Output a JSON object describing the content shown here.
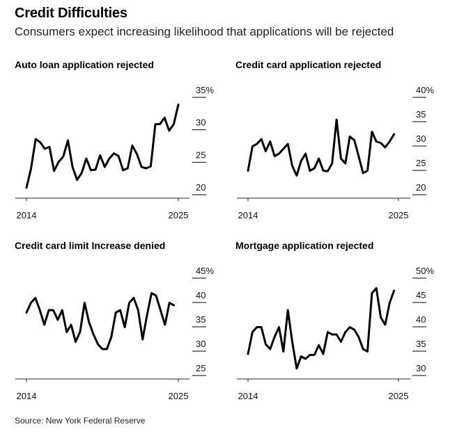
{
  "header": {
    "title": "Credit Difficulties",
    "subtitle": "Consumers expect increasing likelihood that applications will be rejected"
  },
  "source": "Source: New York Federal Reserve",
  "chart_data": [
    {
      "type": "line",
      "title": "Auto loan application rejected",
      "ylim": [
        20,
        35
      ],
      "yticks": [
        20,
        25,
        30,
        35
      ],
      "ytick_labels": [
        "20",
        "25",
        "30",
        "35%"
      ],
      "xtick_labels": [
        "2014",
        "2025"
      ],
      "x": [
        0,
        1,
        2,
        3,
        4,
        5,
        6,
        7,
        8,
        9,
        10,
        11,
        12,
        13,
        14,
        15,
        16,
        17,
        18,
        19,
        20,
        21,
        22,
        23,
        24,
        25,
        26,
        27,
        28,
        29,
        30,
        31,
        32,
        33
      ],
      "values": [
        20.0,
        23.0,
        27.5,
        27.0,
        26.0,
        26.3,
        22.6,
        24.0,
        24.8,
        27.3,
        23.2,
        21.2,
        22.3,
        24.5,
        22.7,
        22.8,
        25.0,
        23.2,
        24.5,
        25.3,
        24.9,
        22.7,
        23.0,
        26.5,
        25.2,
        23.2,
        23.0,
        23.3,
        29.8,
        29.8,
        30.8,
        28.8,
        29.8,
        32.8
      ]
    },
    {
      "type": "line",
      "title": "Credit card application rejected",
      "ylim": [
        20,
        40
      ],
      "yticks": [
        20,
        25,
        30,
        35,
        40
      ],
      "ytick_labels": [
        "20",
        "25",
        "30",
        "35",
        "40%"
      ],
      "xtick_labels": [
        "2014",
        "2025"
      ],
      "x": [
        0,
        1,
        2,
        3,
        4,
        5,
        6,
        7,
        8,
        9,
        10,
        11,
        12,
        13,
        14,
        15,
        16,
        17,
        18,
        19,
        20,
        21,
        22,
        23,
        24,
        25,
        26,
        27,
        28,
        29,
        30,
        31,
        32,
        33,
        34
      ],
      "values": [
        23.5,
        28.5,
        29.0,
        30.0,
        27.5,
        29.5,
        26.5,
        27.0,
        28.0,
        29.0,
        24.5,
        22.5,
        25.5,
        27.0,
        23.5,
        24.0,
        26.0,
        23.5,
        23.4,
        25.0,
        34.0,
        26.0,
        25.0,
        30.5,
        29.8,
        26.5,
        23.0,
        23.5,
        31.5,
        29.5,
        29.2,
        28.3,
        29.5,
        31.0,
        null
      ]
    },
    {
      "type": "line",
      "title": "Credit card limit Increase denied",
      "ylim": [
        25,
        45
      ],
      "yticks": [
        25,
        30,
        35,
        40,
        45
      ],
      "ytick_labels": [
        "25",
        "30",
        "35",
        "40",
        "45%"
      ],
      "xtick_labels": [
        "2014",
        "2025"
      ],
      "x": [
        0,
        1,
        2,
        3,
        4,
        5,
        6,
        7,
        8,
        9,
        10,
        11,
        12,
        13,
        14,
        15,
        16,
        17,
        18,
        19,
        20,
        21,
        22,
        23,
        24,
        25,
        26,
        27,
        28,
        29,
        30,
        31,
        32,
        33,
        34
      ],
      "values": [
        36.5,
        38.5,
        39.5,
        37.0,
        34.0,
        37.0,
        37.0,
        35.0,
        37.0,
        32.5,
        34.0,
        30.5,
        32.5,
        38.5,
        34.5,
        32.0,
        30.0,
        29.0,
        29.0,
        31.5,
        36.5,
        37.0,
        33.5,
        38.5,
        39.5,
        37.0,
        31.0,
        36.0,
        40.5,
        40.0,
        37.0,
        34.0,
        38.5,
        38.0,
        null
      ]
    },
    {
      "type": "line",
      "title": "Mortgage application rejected",
      "ylim": [
        30,
        50
      ],
      "yticks": [
        30,
        35,
        40,
        45,
        50
      ],
      "ytick_labels": [
        "30",
        "35",
        "40",
        "45",
        "50%"
      ],
      "xtick_labels": [
        "2014",
        "2025"
      ],
      "x": [
        0,
        1,
        2,
        3,
        4,
        5,
        6,
        7,
        8,
        9,
        10,
        11,
        12,
        13,
        14,
        15,
        16,
        17,
        18,
        19,
        20,
        21,
        22,
        23,
        24,
        25,
        26,
        27,
        28,
        29,
        30,
        31,
        32,
        33,
        34
      ],
      "values": [
        33.0,
        37.5,
        38.5,
        38.5,
        35.0,
        34.0,
        36.5,
        38.5,
        33.5,
        42.0,
        35.5,
        30.0,
        32.5,
        32.0,
        32.8,
        32.8,
        34.8,
        33.0,
        37.5,
        37.0,
        37.0,
        35.5,
        37.5,
        38.5,
        38.0,
        36.5,
        34.0,
        33.5,
        45.5,
        46.5,
        40.5,
        39.0,
        43.5,
        46.0,
        null
      ]
    }
  ]
}
